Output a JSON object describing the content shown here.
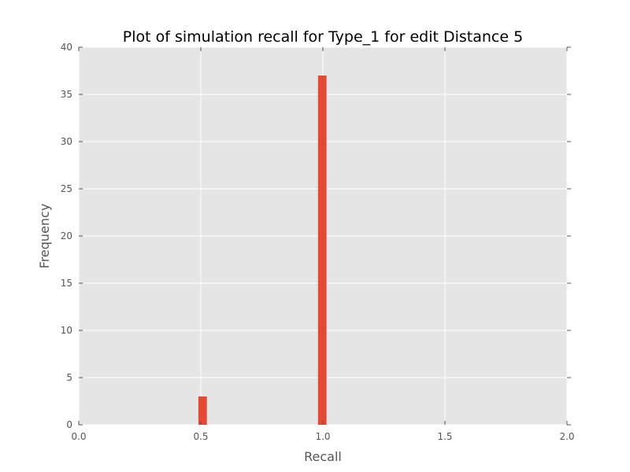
{
  "chart_data": {
    "type": "bar",
    "title": "Plot of simulation recall for Type_1 for edit Distance 5",
    "xlabel": "Recall",
    "ylabel": "Frequency",
    "xlim": [
      0.0,
      2.0
    ],
    "ylim": [
      0,
      40
    ],
    "x_ticks": [
      "0.0",
      "0.5",
      "1.0",
      "1.5",
      "2.0"
    ],
    "y_ticks": [
      "0",
      "5",
      "10",
      "15",
      "20",
      "25",
      "30",
      "35",
      "40"
    ],
    "grid": true,
    "bars": [
      {
        "x_start": 0.49,
        "x_end": 0.525,
        "value": 3
      },
      {
        "x_start": 0.98,
        "x_end": 1.015,
        "value": 37
      }
    ],
    "colors": {
      "bar": "#E24A33",
      "plot_background": "#E5E5E5",
      "grid": "#FFFFFF"
    }
  }
}
